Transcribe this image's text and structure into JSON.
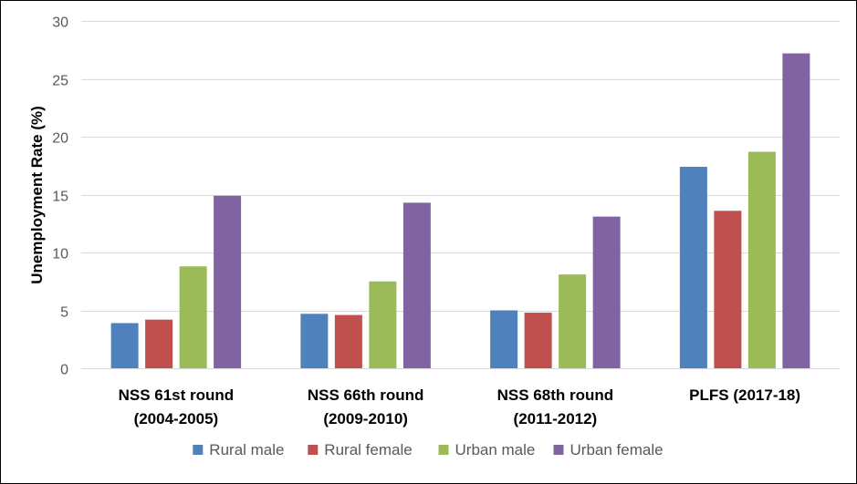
{
  "chart_data": {
    "type": "bar",
    "title": "",
    "xlabel": "",
    "ylabel": "Unemployment Rate (%)",
    "ylim": [
      0,
      30
    ],
    "yticks": [
      0,
      5,
      10,
      15,
      20,
      25,
      30
    ],
    "grid": true,
    "legend_position": "bottom",
    "categories": [
      [
        "NSS 61st round",
        "(2004-2005)"
      ],
      [
        "NSS 66th round",
        "(2009-2010)"
      ],
      [
        "NSS 68th round",
        "(2011-2012)"
      ],
      [
        "PLFS (2017-18)"
      ]
    ],
    "series": [
      {
        "name": "Rural male",
        "color": "#4F81BD",
        "values": [
          3.9,
          4.7,
          5.0,
          17.4
        ]
      },
      {
        "name": "Rural female",
        "color": "#C0504D",
        "values": [
          4.2,
          4.6,
          4.8,
          13.6
        ]
      },
      {
        "name": "Urban male",
        "color": "#9BBB59",
        "values": [
          8.8,
          7.5,
          8.1,
          18.7
        ]
      },
      {
        "name": "Urban female",
        "color": "#8064A2",
        "values": [
          14.9,
          14.3,
          13.1,
          27.2
        ]
      }
    ]
  }
}
